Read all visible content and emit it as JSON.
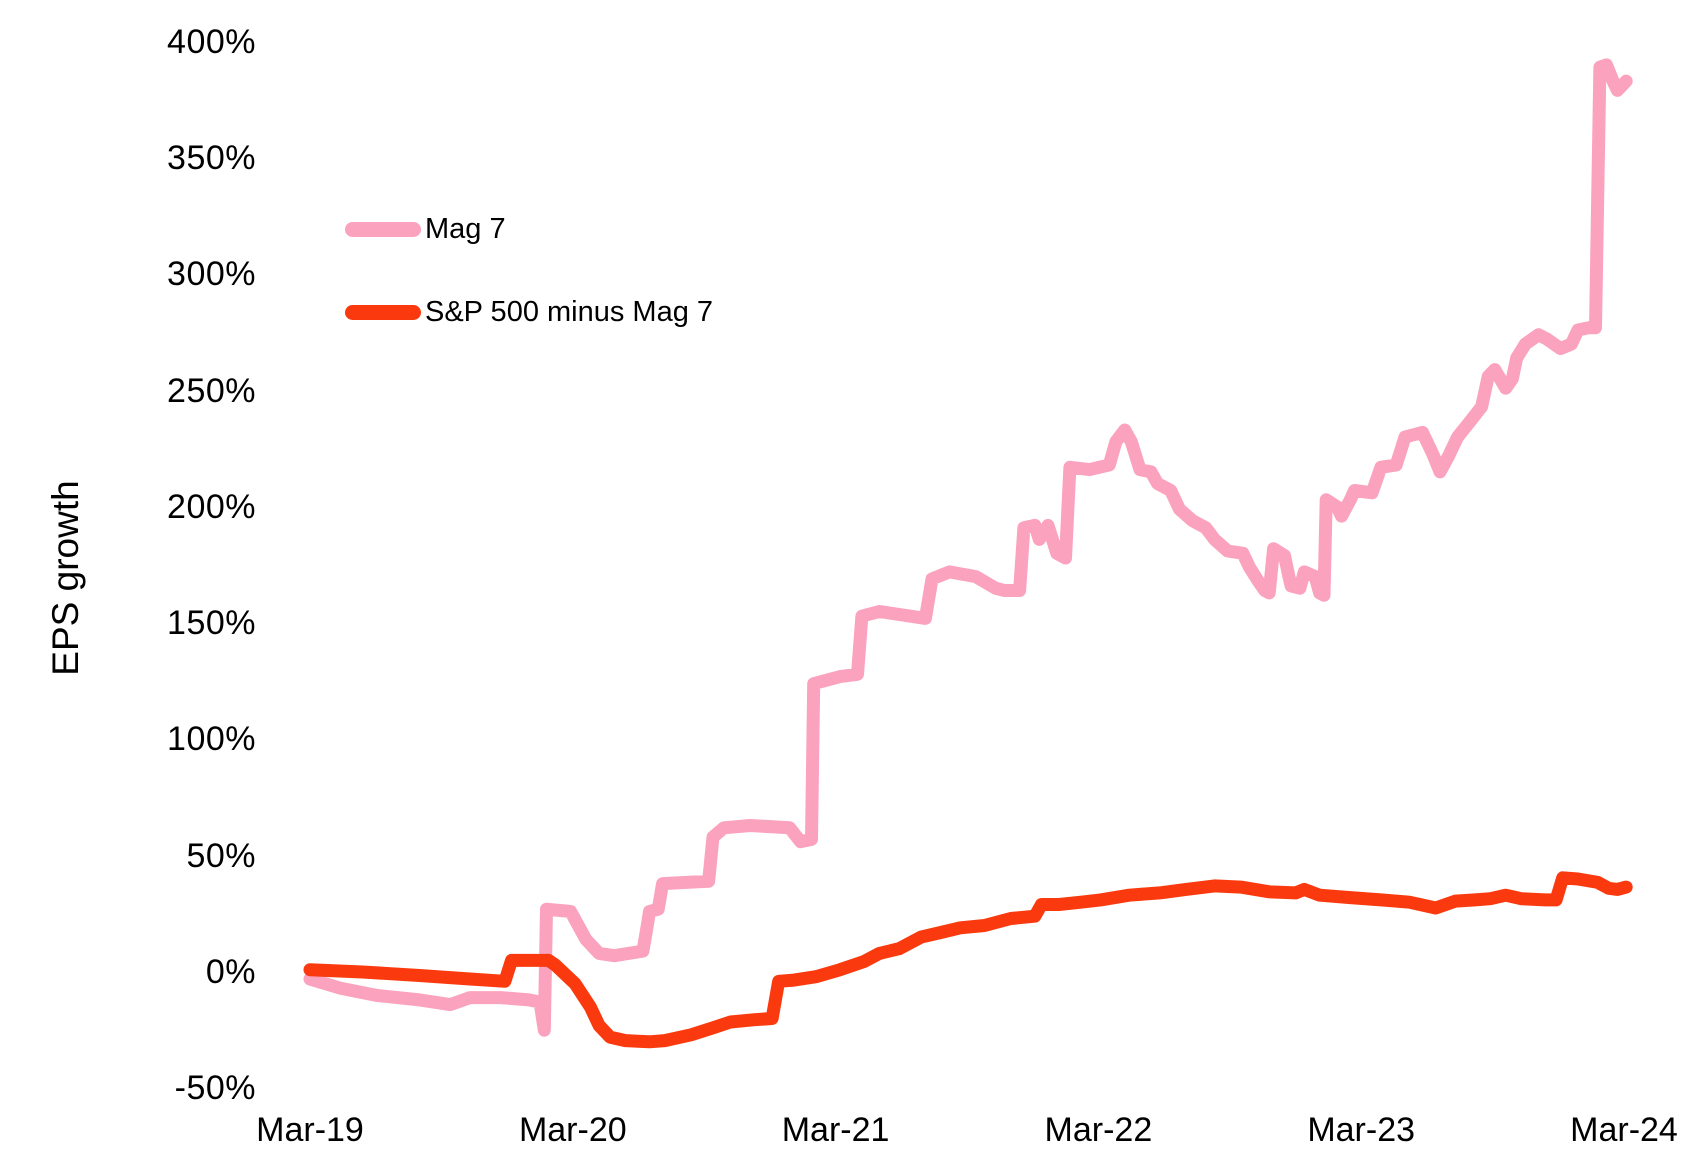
{
  "chart_data": {
    "type": "line",
    "title": "",
    "ylabel": "EPS growth",
    "xlabel": "",
    "grid": false,
    "legend_position": "inside-top-left",
    "x_unit": "months since Mar-19",
    "x_range_months": [
      0,
      60
    ],
    "ylim": [
      -50,
      400
    ],
    "x_ticks": [
      {
        "label": "Mar-19",
        "month": 0
      },
      {
        "label": "Mar-20",
        "month": 12
      },
      {
        "label": "Mar-21",
        "month": 24
      },
      {
        "label": "Mar-22",
        "month": 36
      },
      {
        "label": "Mar-23",
        "month": 48
      },
      {
        "label": "Mar-24",
        "month": 60
      }
    ],
    "y_ticks": [
      {
        "label": "400%",
        "value": 400
      },
      {
        "label": "350%",
        "value": 350
      },
      {
        "label": "300%",
        "value": 300
      },
      {
        "label": "250%",
        "value": 250
      },
      {
        "label": "200%",
        "value": 200
      },
      {
        "label": "150%",
        "value": 150
      },
      {
        "label": "100%",
        "value": 100
      },
      {
        "label": "50%",
        "value": 50
      },
      {
        "label": "0%",
        "value": 0
      },
      {
        "label": "-50%",
        "value": -50
      }
    ],
    "series": [
      {
        "name": "Mag 7",
        "color": "#FBA2BE",
        "points": [
          [
            0,
            -3
          ],
          [
            1.4,
            -7
          ],
          [
            3,
            -10
          ],
          [
            5,
            -12
          ],
          [
            6.4,
            -14
          ],
          [
            7.3,
            -11
          ],
          [
            8.7,
            -11
          ],
          [
            10,
            -12
          ],
          [
            10.5,
            -13
          ],
          [
            10.7,
            -25
          ],
          [
            10.8,
            27
          ],
          [
            11.9,
            26
          ],
          [
            12.6,
            14
          ],
          [
            13.2,
            8
          ],
          [
            13.9,
            7
          ],
          [
            15.2,
            9
          ],
          [
            15.4,
            20
          ],
          [
            15.5,
            26
          ],
          [
            15.9,
            27
          ],
          [
            16.1,
            38
          ],
          [
            18.2,
            39
          ],
          [
            18.4,
            58
          ],
          [
            18.9,
            62
          ],
          [
            20.1,
            63
          ],
          [
            21.9,
            62
          ],
          [
            22.4,
            56
          ],
          [
            22.9,
            57
          ],
          [
            23.0,
            124
          ],
          [
            24.2,
            127
          ],
          [
            25.0,
            128
          ],
          [
            25.2,
            153
          ],
          [
            26.0,
            155
          ],
          [
            28.1,
            152
          ],
          [
            28.4,
            169
          ],
          [
            29.2,
            172
          ],
          [
            30.4,
            170
          ],
          [
            31.3,
            165
          ],
          [
            31.7,
            164
          ],
          [
            32.4,
            164
          ],
          [
            32.6,
            191
          ],
          [
            33.1,
            192
          ],
          [
            33.3,
            186
          ],
          [
            33.7,
            192
          ],
          [
            34.1,
            180
          ],
          [
            34.5,
            178
          ],
          [
            34.7,
            217
          ],
          [
            35.6,
            216
          ],
          [
            36.5,
            218
          ],
          [
            36.8,
            228
          ],
          [
            37.2,
            233
          ],
          [
            37.5,
            228
          ],
          [
            37.9,
            216
          ],
          [
            38.4,
            215
          ],
          [
            38.7,
            210
          ],
          [
            39.3,
            207
          ],
          [
            39.7,
            199
          ],
          [
            40.3,
            194
          ],
          [
            40.9,
            191
          ],
          [
            41.3,
            186
          ],
          [
            41.9,
            181
          ],
          [
            42.6,
            180
          ],
          [
            42.9,
            174
          ],
          [
            43.3,
            168
          ],
          [
            43.6,
            164
          ],
          [
            43.8,
            163
          ],
          [
            44.0,
            182
          ],
          [
            44.5,
            179
          ],
          [
            44.7,
            170
          ],
          [
            44.8,
            166
          ],
          [
            45.2,
            165
          ],
          [
            45.4,
            172
          ],
          [
            45.9,
            170
          ],
          [
            46.1,
            163
          ],
          [
            46.3,
            162
          ],
          [
            46.4,
            203
          ],
          [
            46.9,
            200
          ],
          [
            47.1,
            196
          ],
          [
            47.5,
            203
          ],
          [
            47.7,
            207
          ],
          [
            48.5,
            206
          ],
          [
            48.9,
            217
          ],
          [
            49.6,
            218
          ],
          [
            50.0,
            230
          ],
          [
            50.8,
            232
          ],
          [
            51.3,
            222
          ],
          [
            51.6,
            215
          ],
          [
            52.0,
            222
          ],
          [
            52.4,
            230
          ],
          [
            53.0,
            237
          ],
          [
            53.5,
            243
          ],
          [
            53.8,
            256
          ],
          [
            54.1,
            259
          ],
          [
            54.6,
            251
          ],
          [
            54.9,
            255
          ],
          [
            55.1,
            264
          ],
          [
            55.5,
            270
          ],
          [
            56.1,
            274
          ],
          [
            56.5,
            272
          ],
          [
            57.1,
            268
          ],
          [
            57.6,
            270
          ],
          [
            57.9,
            276
          ],
          [
            58.4,
            277
          ],
          [
            58.7,
            277
          ],
          [
            58.9,
            389
          ],
          [
            59.2,
            390
          ],
          [
            59.5,
            383
          ],
          [
            59.7,
            379
          ],
          [
            59.9,
            381
          ],
          [
            60.1,
            383
          ]
        ]
      },
      {
        "name": "S&P 500 minus Mag 7",
        "color": "#FA3A0E",
        "points": [
          [
            0,
            1
          ],
          [
            2.4,
            0
          ],
          [
            5,
            -1.5
          ],
          [
            7.3,
            -3
          ],
          [
            8.9,
            -4
          ],
          [
            9.2,
            5
          ],
          [
            10.9,
            5
          ],
          [
            11.2,
            3
          ],
          [
            12.1,
            -5
          ],
          [
            12.8,
            -15
          ],
          [
            13.2,
            -23
          ],
          [
            13.7,
            -28
          ],
          [
            14.4,
            -29.5
          ],
          [
            15.5,
            -30
          ],
          [
            16.2,
            -29.5
          ],
          [
            17.4,
            -27
          ],
          [
            18.4,
            -24
          ],
          [
            19.2,
            -21.5
          ],
          [
            20.3,
            -20.5
          ],
          [
            21.1,
            -20
          ],
          [
            21.4,
            -4
          ],
          [
            22.1,
            -3.5
          ],
          [
            23.1,
            -2
          ],
          [
            24.2,
            1
          ],
          [
            25.3,
            4.5
          ],
          [
            26.0,
            8
          ],
          [
            26.9,
            10
          ],
          [
            27.9,
            15
          ],
          [
            28.8,
            17
          ],
          [
            29.7,
            19
          ],
          [
            30.8,
            20
          ],
          [
            32.0,
            23
          ],
          [
            33.1,
            24
          ],
          [
            33.4,
            29
          ],
          [
            34.2,
            29
          ],
          [
            35.2,
            30
          ],
          [
            36.1,
            31
          ],
          [
            37.4,
            33
          ],
          [
            38.8,
            34
          ],
          [
            40.0,
            35.5
          ],
          [
            41.3,
            37
          ],
          [
            42.5,
            36.5
          ],
          [
            43.8,
            34.5
          ],
          [
            45.0,
            34
          ],
          [
            45.4,
            35.5
          ],
          [
            46.1,
            33
          ],
          [
            47.5,
            32
          ],
          [
            48.9,
            31
          ],
          [
            50.2,
            30
          ],
          [
            51.4,
            27.5
          ],
          [
            52.3,
            30.5
          ],
          [
            53.2,
            31
          ],
          [
            53.9,
            31.5
          ],
          [
            54.6,
            33
          ],
          [
            55.3,
            31.5
          ],
          [
            56.4,
            31
          ],
          [
            56.9,
            31
          ],
          [
            57.2,
            40.5
          ],
          [
            57.9,
            40
          ],
          [
            58.8,
            38.5
          ],
          [
            59.3,
            36
          ],
          [
            59.7,
            35.5
          ],
          [
            60.1,
            36.5
          ]
        ]
      }
    ]
  }
}
